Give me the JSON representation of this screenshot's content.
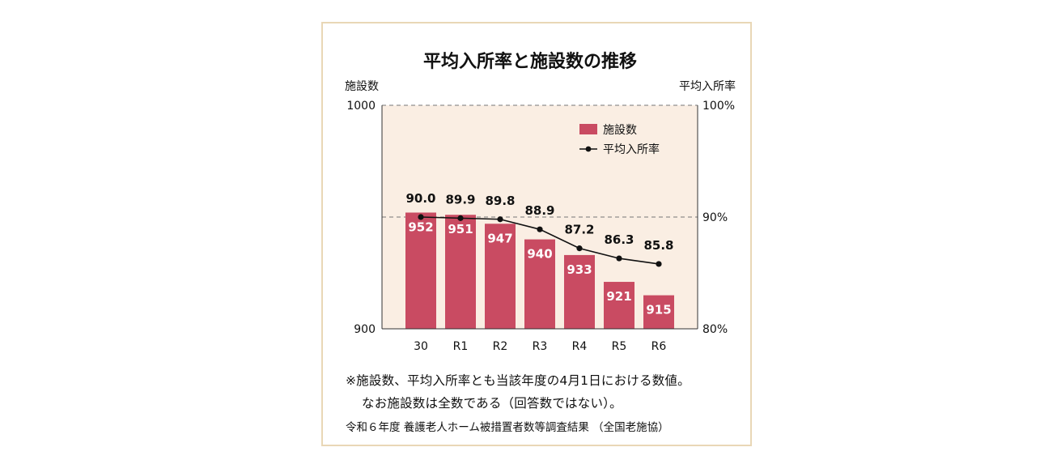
{
  "chart_data": {
    "type": "bar+line",
    "title": "平均入所率と施設数の推移",
    "categories": [
      "30",
      "R1",
      "R2",
      "R3",
      "R4",
      "R5",
      "R6"
    ],
    "left_axis": {
      "label": "施設数",
      "min": 900,
      "max": 1000,
      "tick_labels": [
        "1000",
        "900"
      ]
    },
    "right_axis": {
      "label": "平均入所率",
      "min": 80,
      "max": 100,
      "tick_labels": [
        "100%",
        "90%",
        "80%"
      ]
    },
    "series": [
      {
        "name": "施設数",
        "kind": "bar",
        "axis": "left",
        "values": [
          952,
          951,
          947,
          940,
          933,
          921,
          915
        ]
      },
      {
        "name": "平均入所率",
        "kind": "line",
        "axis": "right",
        "values": [
          90.0,
          89.9,
          89.8,
          88.9,
          87.2,
          86.3,
          85.8
        ],
        "labels": [
          "90.0",
          "89.9",
          "89.8",
          "88.9",
          "87.2",
          "86.3",
          "85.8"
        ]
      }
    ],
    "legend_position": "top-right",
    "gridlines": "dashed at 1000 and 90%"
  },
  "notes": {
    "line1": "※施設数、平均入所率とも当該年度の4月1日における数値。",
    "line2": "なお施設数は全数である（回答数ではない）。",
    "source": "令和６年度 養護老人ホーム被措置者数等調査結果 （全国老施協）"
  },
  "colors": {
    "bar": "#c94b62",
    "plot_bg": "#faeee3",
    "frame": "#e9d7b6",
    "line": "#111111"
  }
}
